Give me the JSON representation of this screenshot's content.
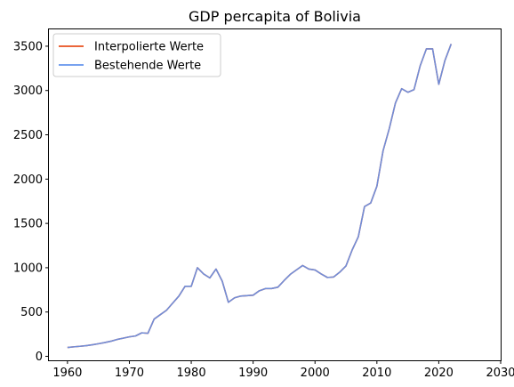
{
  "chart_data": {
    "type": "line",
    "title": "GDP percapita of Bolivia",
    "xlabel": "",
    "ylabel": "",
    "xlim": [
      1957,
      2030
    ],
    "ylim": [
      -45,
      3690
    ],
    "xticks": [
      1960,
      1970,
      1980,
      1990,
      2000,
      2010,
      2020,
      2030
    ],
    "yticks": [
      0,
      500,
      1000,
      1500,
      2000,
      2500,
      3000,
      3500
    ],
    "grid": false,
    "legend_position": "top-left",
    "x": [
      1960,
      1961,
      1962,
      1963,
      1964,
      1965,
      1966,
      1967,
      1968,
      1969,
      1970,
      1971,
      1972,
      1973,
      1974,
      1975,
      1976,
      1977,
      1978,
      1979,
      1980,
      1981,
      1982,
      1983,
      1984,
      1985,
      1986,
      1987,
      1988,
      1989,
      1990,
      1991,
      1992,
      1993,
      1994,
      1995,
      1996,
      1997,
      1998,
      1999,
      2000,
      2001,
      2002,
      2003,
      2004,
      2005,
      2006,
      2007,
      2008,
      2009,
      2010,
      2011,
      2012,
      2013,
      2014,
      2015,
      2016,
      2017,
      2018,
      2019,
      2020,
      2021,
      2022
    ],
    "series": [
      {
        "name": "Interpolierte Werte",
        "color": "#e8501e",
        "values": [
          100,
          107,
          113,
          120,
          130,
          142,
          155,
          170,
          190,
          205,
          220,
          230,
          265,
          260,
          420,
          470,
          520,
          600,
          680,
          790,
          790,
          1000,
          930,
          885,
          985,
          850,
          610,
          660,
          680,
          685,
          690,
          740,
          765,
          765,
          780,
          855,
          925,
          975,
          1025,
          985,
          975,
          930,
          890,
          895,
          950,
          1020,
          1200,
          1350,
          1690,
          1730,
          1920,
          2320,
          2570,
          2860,
          3020,
          2980,
          3010,
          3280,
          3470,
          3470,
          3070,
          3340,
          3525
        ]
      },
      {
        "name": "Bestehende Werte",
        "color": "#6495ed",
        "values": [
          100,
          107,
          113,
          120,
          130,
          142,
          155,
          170,
          190,
          205,
          220,
          230,
          265,
          260,
          420,
          470,
          520,
          600,
          680,
          790,
          790,
          1000,
          930,
          885,
          985,
          850,
          610,
          660,
          680,
          685,
          690,
          740,
          765,
          765,
          780,
          855,
          925,
          975,
          1025,
          985,
          975,
          930,
          890,
          895,
          950,
          1020,
          1200,
          1350,
          1690,
          1730,
          1920,
          2320,
          2570,
          2860,
          3020,
          2980,
          3010,
          3280,
          3470,
          3470,
          3070,
          3340,
          3525
        ]
      }
    ]
  }
}
